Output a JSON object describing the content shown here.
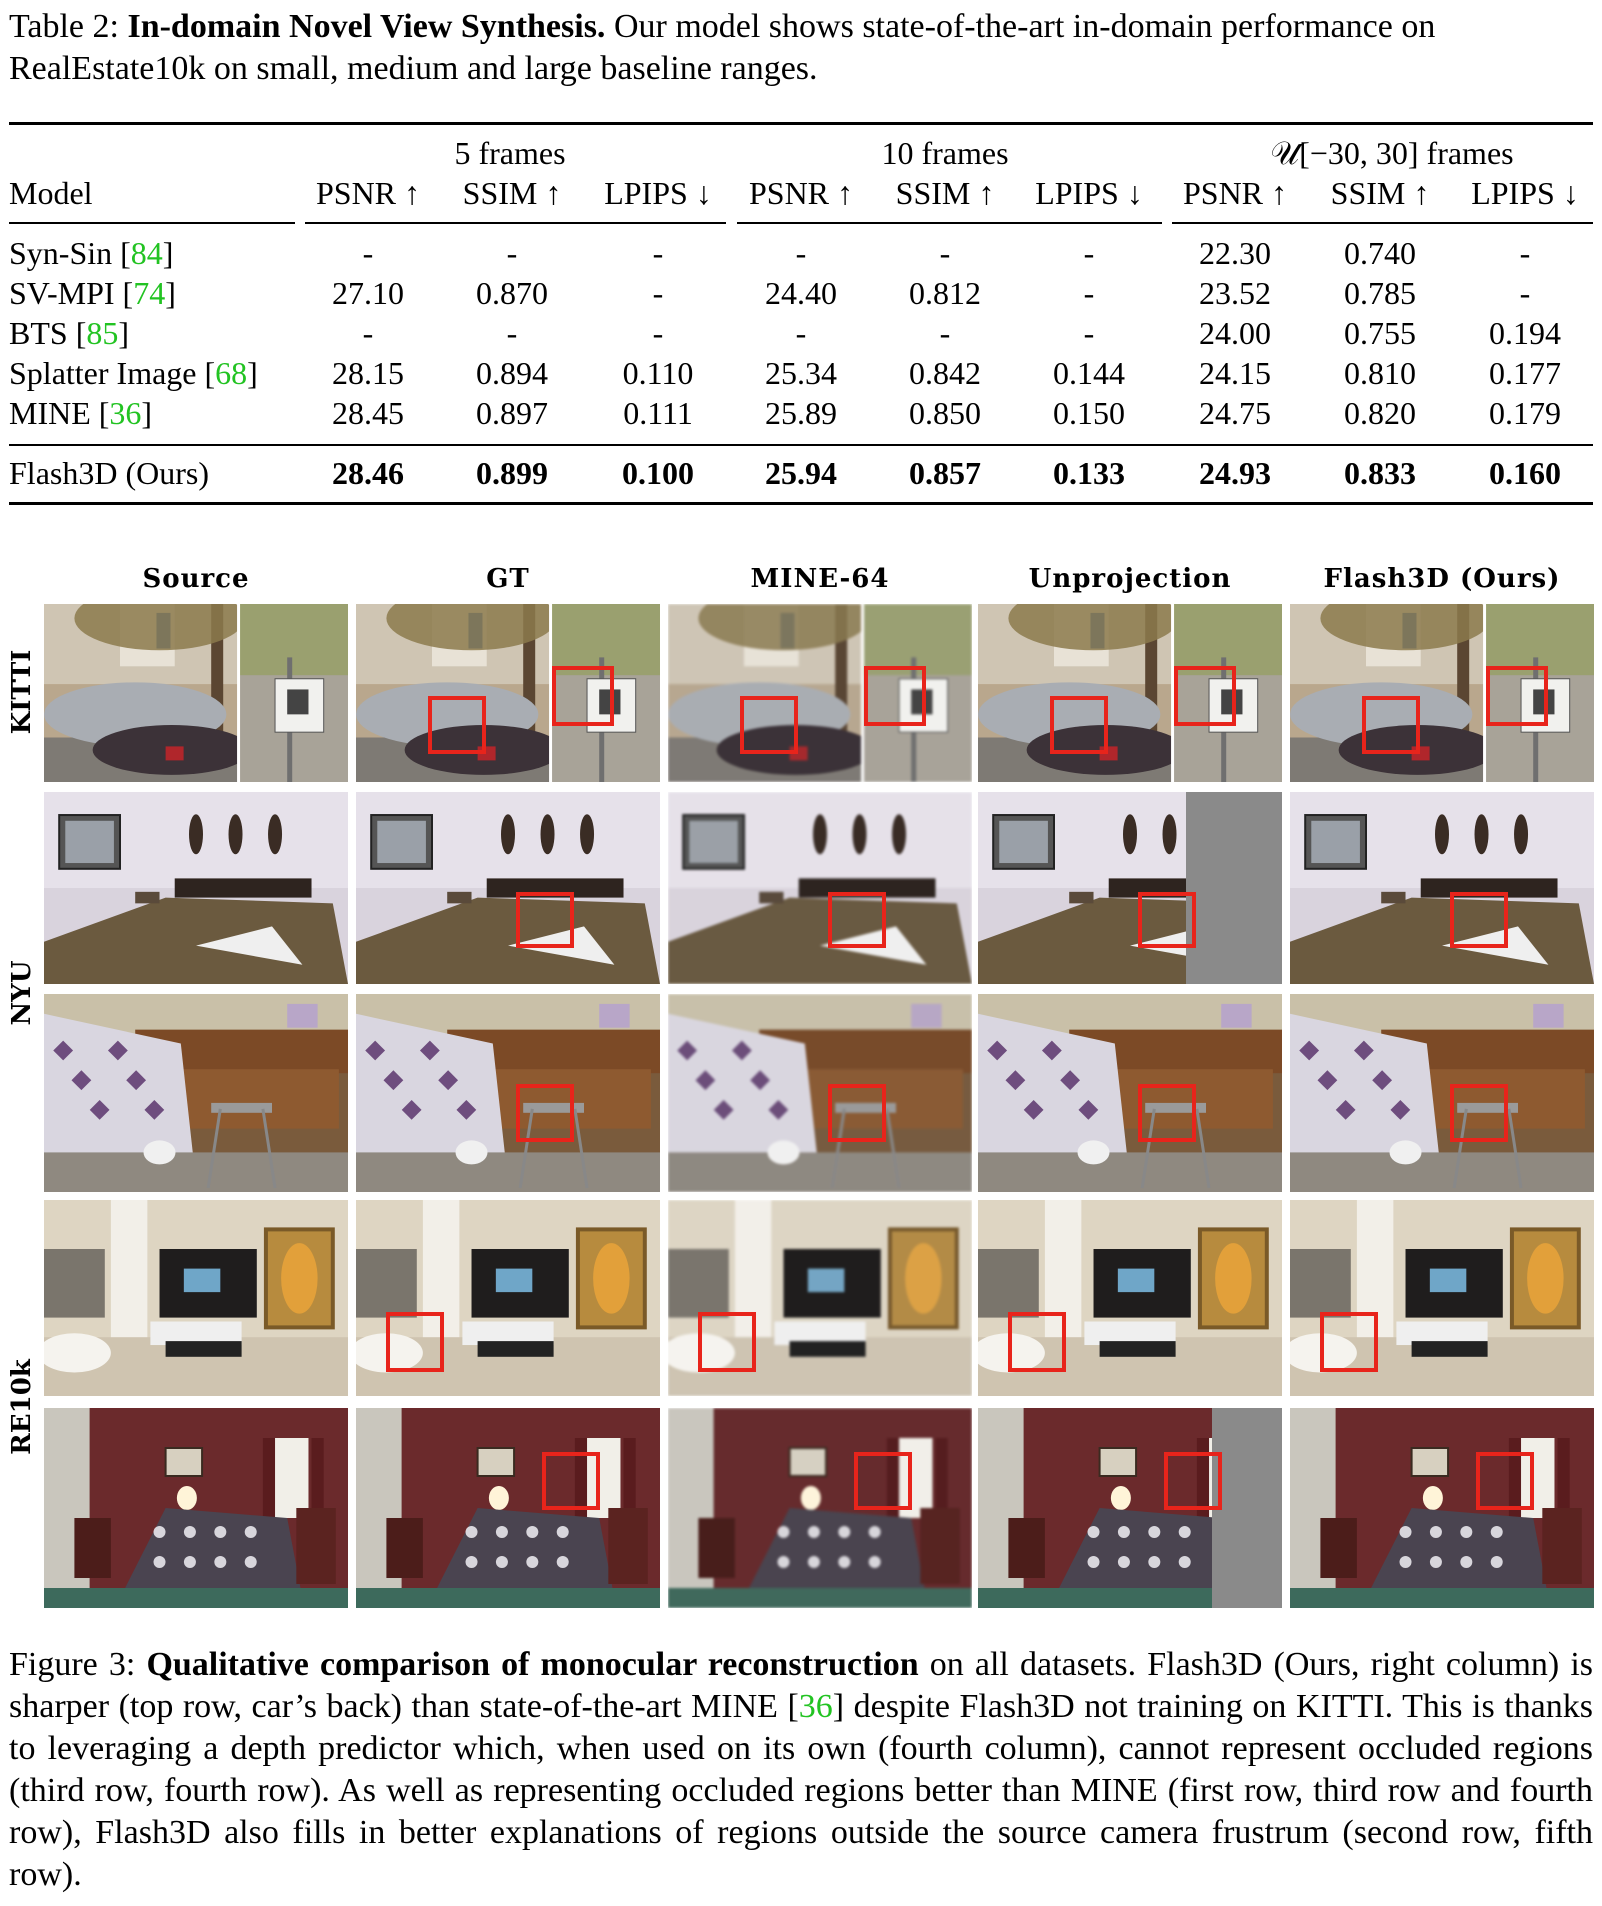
{
  "table_caption": {
    "prefix": "Table 2: ",
    "bold": "In-domain Novel View Synthesis.",
    "rest": " Our model shows state-of-the-art in-domain performance on RealEstate10k on small, medium and large baseline ranges."
  },
  "table": {
    "model_header": "Model",
    "groups": [
      "5 frames",
      "10 frames",
      "𝒰[−30, 30] frames"
    ],
    "metrics": [
      "PSNR ↑",
      "SSIM ↑",
      "LPIPS ↓",
      "PSNR ↑",
      "SSIM ↑",
      "LPIPS ↓",
      "PSNR ↑",
      "SSIM ↑",
      "LPIPS ↓"
    ],
    "rows": [
      {
        "model": "Syn-Sin [",
        "cite": "84",
        "values": [
          "-",
          "-",
          "-",
          "-",
          "-",
          "-",
          "22.30",
          "0.740",
          "-"
        ]
      },
      {
        "model": "SV-MPI [",
        "cite": "74",
        "values": [
          "27.10",
          "0.870",
          "-",
          "24.40",
          "0.812",
          "-",
          "23.52",
          "0.785",
          "-"
        ]
      },
      {
        "model": "BTS [",
        "cite": "85",
        "values": [
          "-",
          "-",
          "-",
          "-",
          "-",
          "-",
          "24.00",
          "0.755",
          "0.194"
        ]
      },
      {
        "model": "Splatter Image [",
        "cite": "68",
        "values": [
          "28.15",
          "0.894",
          "0.110",
          "25.34",
          "0.842",
          "0.144",
          "24.15",
          "0.810",
          "0.177"
        ]
      },
      {
        "model": "MINE [",
        "cite": "36",
        "values": [
          "28.45",
          "0.897",
          "0.111",
          "25.89",
          "0.850",
          "0.150",
          "24.75",
          "0.820",
          "0.179"
        ]
      }
    ],
    "ours": {
      "model": "Flash3D (Ours)",
      "values": [
        "28.46",
        "0.899",
        "0.100",
        "25.94",
        "0.857",
        "0.133",
        "24.93",
        "0.833",
        "0.160"
      ]
    }
  },
  "figure": {
    "columns": [
      "Source",
      "GT",
      "MINE-64",
      "Unprojection",
      "Flash3D (Ours)"
    ],
    "row_labels": [
      "KITTI",
      "NYU",
      "RE10k"
    ],
    "scenes": [
      "street-car",
      "bedroom-masks",
      "desk-quilt",
      "living-poster",
      "bedroom-maroon"
    ],
    "colors": {
      "highlight": "#e8241b",
      "cite": "#22c322"
    }
  },
  "figure_caption": {
    "prefix": "Figure 3: ",
    "bold": "Qualitative comparison of monocular reconstruction",
    "part1": " on all datasets. Flash3D (Ours, right column) is sharper (top row, car’s back) than state-of-the-art MINE [",
    "cite": "36",
    "part2": "] despite Flash3D not training on KITTI. This is thanks to leveraging a depth predictor which, when used on its own (fourth column), cannot represent occluded regions (third row, fourth row). As well as representing occluded regions better than MINE (first row, third row and fourth row), Flash3D also fills in better explanations of regions outside the source camera frustrum (second row, fifth row)."
  }
}
